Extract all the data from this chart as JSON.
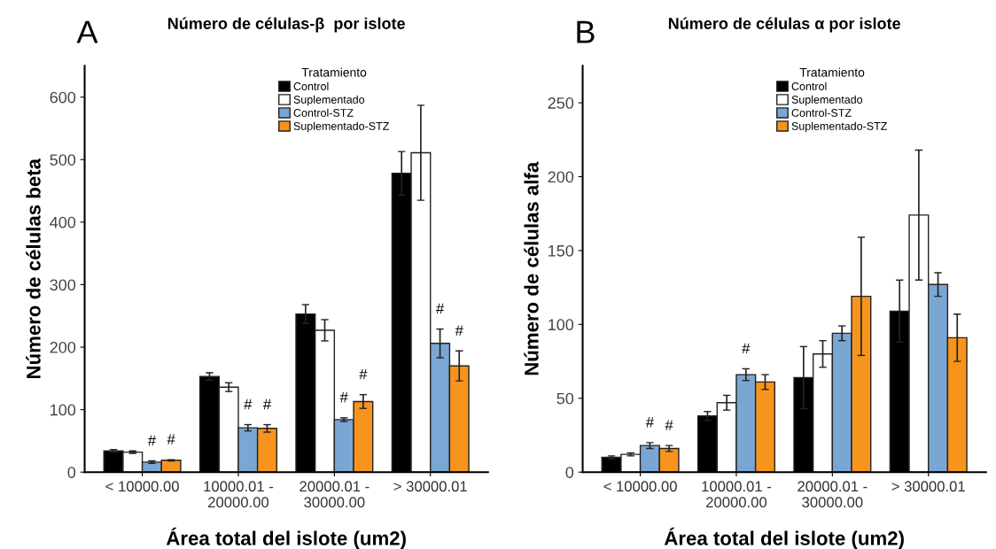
{
  "chart_data": [
    {
      "type": "bar",
      "title": "Número de células-β  por islote",
      "xlabel": "Área total del islote (um2)",
      "ylabel": "Número de células beta",
      "legend_title": "Tratamiento",
      "categories": [
        "< 10000.00",
        "10000.01 -\n20000.00",
        "20000.01 -\n30000.00",
        "> 30000.01"
      ],
      "series": [
        {
          "name": "Control",
          "color": "#000000",
          "values": [
            34,
            153,
            253,
            478
          ],
          "errors": [
            2,
            6,
            15,
            35
          ]
        },
        {
          "name": "Suplementado",
          "color": "#ffffff",
          "values": [
            32,
            136,
            227,
            511
          ],
          "errors": [
            2,
            7,
            17,
            76
          ]
        },
        {
          "name": "Control-STZ",
          "color": "#7aa6d4",
          "values": [
            16,
            71,
            84,
            206
          ],
          "errors": [
            2,
            5,
            3,
            23
          ],
          "value_labels": [
            "#",
            "#",
            "#",
            "#"
          ]
        },
        {
          "name": "Suplementado-STZ",
          "color": "#f7941d",
          "values": [
            19,
            70,
            113,
            170
          ],
          "errors": [
            1,
            6,
            11,
            24
          ],
          "value_labels": [
            "#",
            "#",
            "#",
            "#"
          ]
        }
      ],
      "annotations": [
        "A"
      ],
      "ylim": [
        0,
        650
      ],
      "yticks": [
        0,
        100,
        200,
        300,
        400,
        500,
        600
      ],
      "grid": false,
      "legend": "top right"
    },
    {
      "type": "bar",
      "title": "Número de células α por islote",
      "xlabel": "Área total del islote (um2)",
      "ylabel": "Número de células alfa",
      "legend_title": "Tratamiento",
      "categories": [
        "< 10000.00",
        "10000.01 -\n20000.00",
        "20000.01 -\n30000.00",
        "> 30000.01"
      ],
      "series": [
        {
          "name": "Control",
          "color": "#000000",
          "values": [
            10,
            38,
            64,
            109
          ],
          "errors": [
            1,
            3,
            21,
            21
          ]
        },
        {
          "name": "Suplementado",
          "color": "#ffffff",
          "values": [
            12,
            47,
            80,
            174
          ],
          "errors": [
            1,
            5,
            9,
            44
          ]
        },
        {
          "name": "Control-STZ",
          "color": "#7aa6d4",
          "values": [
            18,
            66,
            94,
            127
          ],
          "errors": [
            2,
            4,
            5,
            8
          ],
          "value_labels": [
            "#",
            "#",
            null,
            null
          ]
        },
        {
          "name": "Suplementado-STZ",
          "color": "#f7941d",
          "values": [
            16,
            61,
            119,
            91
          ],
          "errors": [
            2,
            5,
            40,
            16
          ],
          "value_labels": [
            "#",
            null,
            null,
            null
          ]
        }
      ],
      "annotations": [
        "B"
      ],
      "ylim": [
        0,
        275
      ],
      "yticks": [
        0,
        50,
        100,
        150,
        200,
        250
      ],
      "grid": false,
      "legend": "top right"
    }
  ]
}
